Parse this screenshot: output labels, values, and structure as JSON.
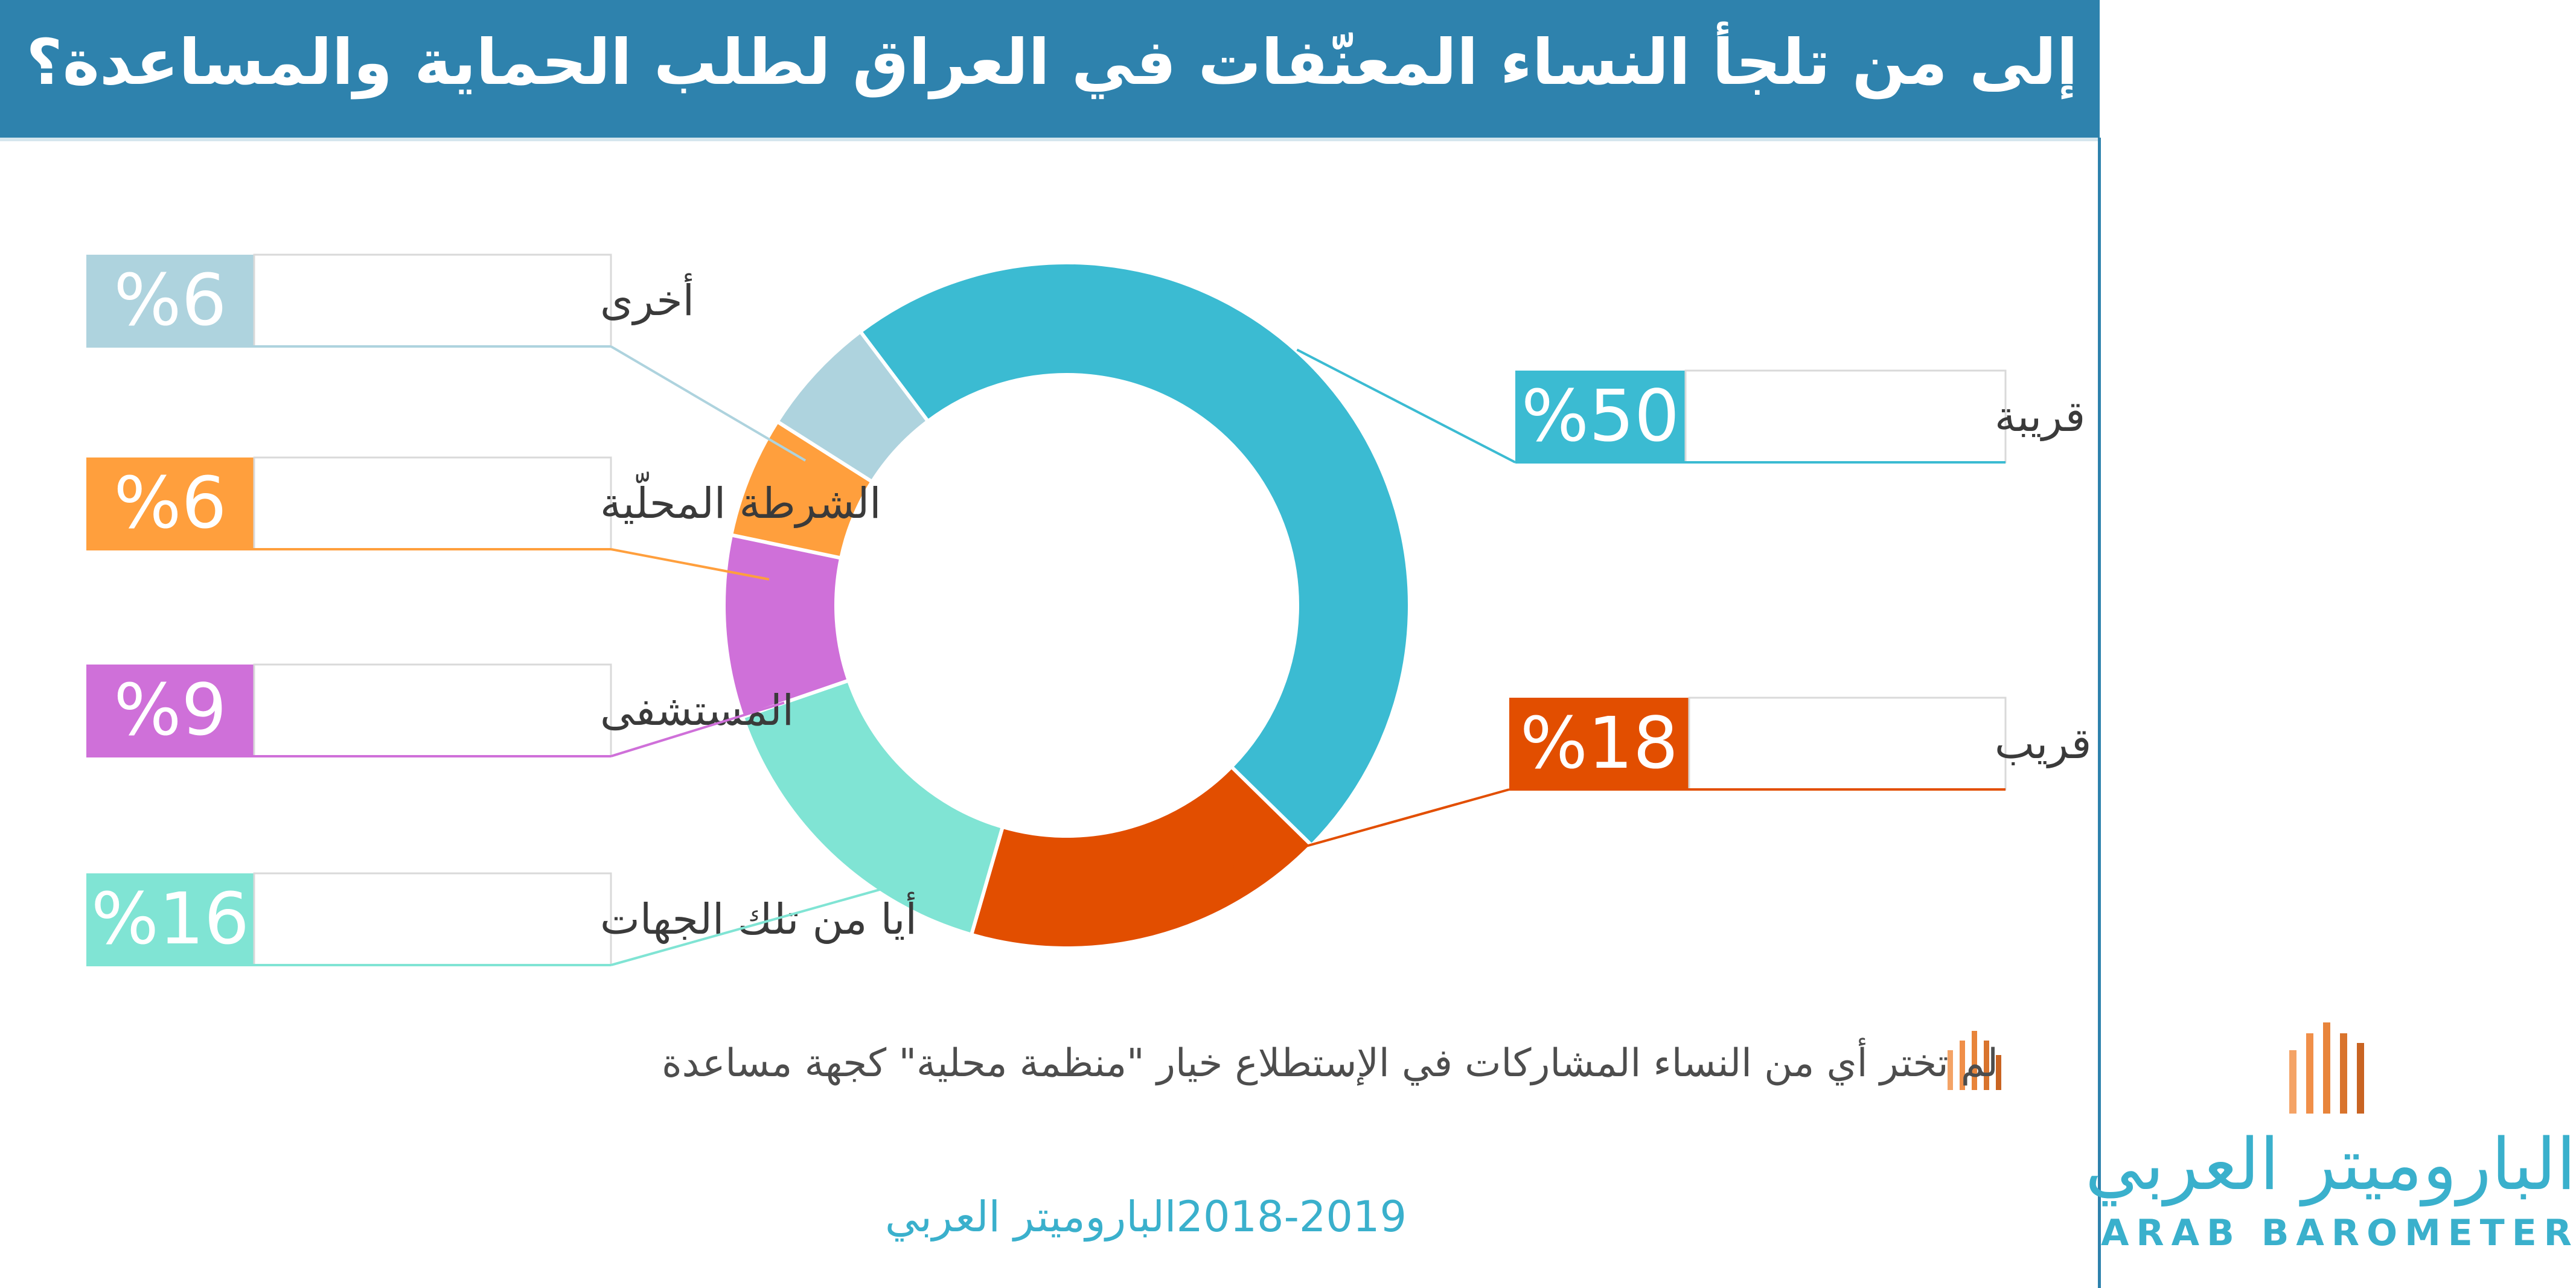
{
  "header": {
    "title": "إلى من تلجأ النساء المعنّفات في العراق لطلب الحماية والمساعدة؟"
  },
  "chart_data": {
    "type": "pie",
    "title": "إلى من تلجأ النساء المعنّفات في العراق لطلب الحماية والمساعدة؟",
    "donut": true,
    "slices": [
      {
        "label": "قريبة",
        "value": 50,
        "value_label": "%50",
        "color": "#3bbbd2"
      },
      {
        "label": "قريب",
        "value": 18,
        "value_label": "%18",
        "color": "#e24e00"
      },
      {
        "label": "أيا من تلك الجهات",
        "value": 16,
        "value_label": "%16",
        "color": "#80e4d4"
      },
      {
        "label": "المستشفى",
        "value": 9,
        "value_label": "%9",
        "color": "#cf70d9"
      },
      {
        "label": "الشرطة المحلّية",
        "value": 6,
        "value_label": "%6",
        "color": "#ff9f3d"
      },
      {
        "label": "أخرى",
        "value": 6,
        "value_label": "%6",
        "color": "#aed3de"
      }
    ]
  },
  "note": {
    "text": "لم تختر أي من النساء المشاركات في الإستطلاع خيار \"منظمة محلية\"  كجهة مساعدة",
    "icon": "bars-icon"
  },
  "source": {
    "name": "الباروميتر العربي",
    "years": "2018-2019"
  },
  "logo": {
    "arabic": "الباروميتر العربي",
    "english": "ARAB BAROMETER",
    "icon": "barometer-bars-icon"
  },
  "colors": {
    "header_bg": "#2e82ad",
    "brand_teal": "#3ab0cc",
    "brand_orange": "#e8843a"
  }
}
